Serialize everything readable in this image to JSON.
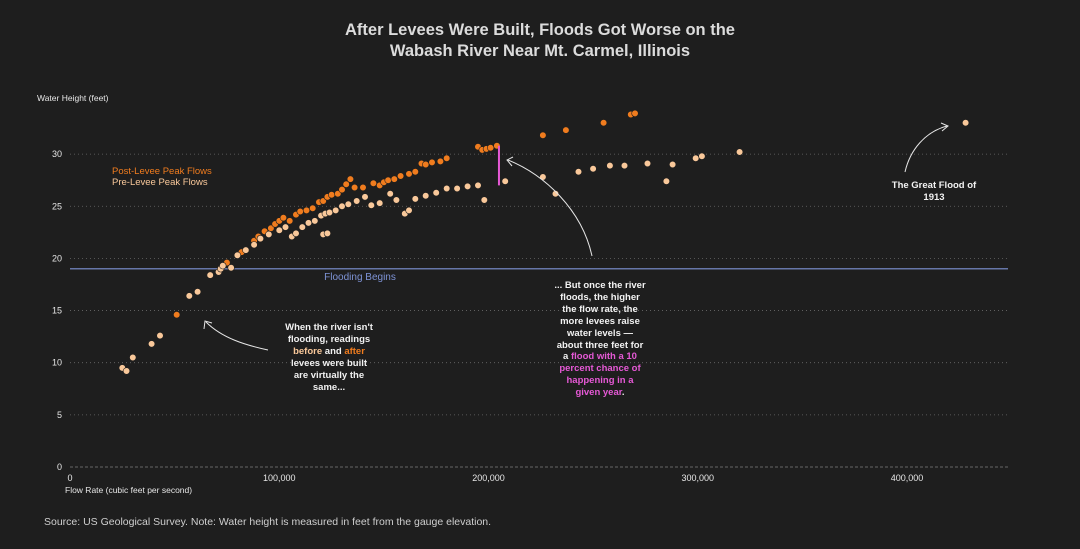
{
  "title": {
    "line1": "After Levees Were Built, Floods Got Worse on the",
    "line2": "Wabash River Near Mt. Carmel, Illinois"
  },
  "source": "Source: US Geological Survey. Note: Water height is measured in feet from the gauge elevation.",
  "colors": {
    "background": "#1e1e1e",
    "post_levee": "#f07c1e",
    "pre_levee": "#f9c89a",
    "flood_line": "#7e93d6",
    "highlight_pink": "#e659d6",
    "grid": "#8a8a8a",
    "text": "#e6e6e6"
  },
  "chart_data": {
    "type": "scatter",
    "ylabel": "Water Height (feet)",
    "xlabel": "Flow Rate (cubic feet per second)",
    "xlim": [
      0,
      450000
    ],
    "ylim": [
      0,
      33
    ],
    "x_ticks": [
      0,
      100000,
      200000,
      300000,
      400000
    ],
    "x_tick_labels": [
      "0",
      "100,000",
      "200,000",
      "300,000",
      "400,000"
    ],
    "y_ticks": [
      0,
      5,
      10,
      15,
      20,
      25,
      30
    ],
    "y_tick_labels": [
      "0",
      "5",
      "10",
      "15",
      "20",
      "25",
      "30"
    ],
    "grid": "horizontal dotted",
    "legend": {
      "placement": "top-left",
      "entries": [
        "Post-Levee Peak Flows",
        "Pre-Levee Peak Flows"
      ]
    },
    "reference_line": {
      "y": 19.0,
      "label": "Flooding Begins"
    },
    "marker_segment": {
      "x": 205000,
      "y_from": 27.0,
      "y_to": 30.8
    },
    "series": [
      {
        "name": "Post-Levee Peak Flows",
        "points": [
          [
            51000,
            14.6
          ],
          [
            75000,
            19.6
          ],
          [
            82000,
            20.6
          ],
          [
            88000,
            21.7
          ],
          [
            90000,
            22.1
          ],
          [
            93000,
            22.6
          ],
          [
            96000,
            22.9
          ],
          [
            98000,
            23.3
          ],
          [
            100000,
            23.6
          ],
          [
            102000,
            23.9
          ],
          [
            105000,
            23.6
          ],
          [
            108000,
            24.2
          ],
          [
            110000,
            24.5
          ],
          [
            113000,
            24.6
          ],
          [
            116000,
            24.8
          ],
          [
            119000,
            25.4
          ],
          [
            121000,
            25.5
          ],
          [
            123000,
            25.9
          ],
          [
            125000,
            26.1
          ],
          [
            128000,
            26.2
          ],
          [
            130000,
            26.6
          ],
          [
            132000,
            27.1
          ],
          [
            134000,
            27.6
          ],
          [
            136000,
            26.8
          ],
          [
            140000,
            26.8
          ],
          [
            145000,
            27.2
          ],
          [
            148000,
            27.0
          ],
          [
            150000,
            27.3
          ],
          [
            152000,
            27.5
          ],
          [
            155000,
            27.6
          ],
          [
            158000,
            27.9
          ],
          [
            162000,
            28.1
          ],
          [
            165000,
            28.3
          ],
          [
            168000,
            29.1
          ],
          [
            170000,
            29.0
          ],
          [
            173000,
            29.2
          ],
          [
            177000,
            29.3
          ],
          [
            180000,
            29.6
          ],
          [
            195000,
            30.7
          ],
          [
            197000,
            30.4
          ],
          [
            199000,
            30.5
          ],
          [
            201000,
            30.6
          ],
          [
            204000,
            30.8
          ],
          [
            226000,
            31.8
          ],
          [
            237000,
            32.3
          ],
          [
            255000,
            33.0
          ],
          [
            268000,
            33.8
          ],
          [
            270000,
            33.9
          ]
        ]
      },
      {
        "name": "Pre-Levee Peak Flows",
        "points": [
          [
            25000,
            9.5
          ],
          [
            27000,
            9.2
          ],
          [
            30000,
            10.5
          ],
          [
            39000,
            11.8
          ],
          [
            43000,
            12.6
          ],
          [
            57000,
            16.4
          ],
          [
            61000,
            16.8
          ],
          [
            67000,
            18.4
          ],
          [
            71000,
            18.7
          ],
          [
            72000,
            19.0
          ],
          [
            73000,
            19.3
          ],
          [
            77000,
            19.1
          ],
          [
            80000,
            20.3
          ],
          [
            84000,
            20.8
          ],
          [
            88000,
            21.3
          ],
          [
            91000,
            21.9
          ],
          [
            95000,
            22.3
          ],
          [
            100000,
            22.7
          ],
          [
            103000,
            23.0
          ],
          [
            106000,
            22.1
          ],
          [
            108000,
            22.4
          ],
          [
            111000,
            23.0
          ],
          [
            114000,
            23.4
          ],
          [
            117000,
            23.6
          ],
          [
            120000,
            24.1
          ],
          [
            122000,
            24.3
          ],
          [
            124000,
            24.4
          ],
          [
            127000,
            24.6
          ],
          [
            121000,
            22.3
          ],
          [
            123000,
            22.4
          ],
          [
            130000,
            25.0
          ],
          [
            133000,
            25.2
          ],
          [
            137000,
            25.5
          ],
          [
            141000,
            25.9
          ],
          [
            144000,
            25.1
          ],
          [
            148000,
            25.3
          ],
          [
            153000,
            26.2
          ],
          [
            156000,
            25.6
          ],
          [
            160000,
            24.3
          ],
          [
            162000,
            24.6
          ],
          [
            165000,
            25.7
          ],
          [
            170000,
            26.0
          ],
          [
            175000,
            26.3
          ],
          [
            180000,
            26.7
          ],
          [
            185000,
            26.7
          ],
          [
            190000,
            26.9
          ],
          [
            195000,
            27.0
          ],
          [
            198000,
            25.6
          ],
          [
            208000,
            27.4
          ],
          [
            226000,
            27.8
          ],
          [
            232000,
            26.2
          ],
          [
            243000,
            28.3
          ],
          [
            250000,
            28.6
          ],
          [
            258000,
            28.9
          ],
          [
            265000,
            28.9
          ],
          [
            276000,
            29.1
          ],
          [
            285000,
            27.4
          ],
          [
            288000,
            29.0
          ],
          [
            299000,
            29.6
          ],
          [
            302000,
            29.8
          ],
          [
            320000,
            30.2
          ],
          [
            428000,
            33.0
          ]
        ]
      }
    ],
    "annotations": [
      {
        "text_lines": [
          "The Great Flood of",
          "1913"
        ]
      },
      {
        "text_lines": [
          "When the river isn't",
          "flooding, readings",
          "before and after",
          "levees were built",
          "are virtually the",
          "same..."
        ]
      },
      {
        "text_lines": [
          "... But once the river",
          "floods, the higher",
          "the flow rate, the",
          "more levees raise",
          "water levels —",
          "about three feet for",
          "a flood with a 10",
          "percent chance of",
          "happening in a",
          "given year."
        ]
      }
    ]
  },
  "annotation_parts": {
    "left": {
      "line1": "When the river isn't",
      "line2": "flooding, readings",
      "before": "before",
      "and": " and ",
      "after": "after",
      "line4": "levees were built",
      "line5": "are virtually the",
      "line6": "same..."
    },
    "right": {
      "line1": "... But once the river",
      "line2": "floods, the higher",
      "line3": "the flow rate, the",
      "line4": "more levees raise",
      "line5": "water levels —",
      "line6": "about three feet for",
      "line7_prefix": "a ",
      "line7_pink": "flood with a 10",
      "line8": "percent chance of",
      "line9": "happening in a",
      "line10_pink": "given year",
      "line10_suffix": "."
    },
    "great_flood": {
      "line1": "The Great Flood of",
      "line2": "1913"
    }
  }
}
